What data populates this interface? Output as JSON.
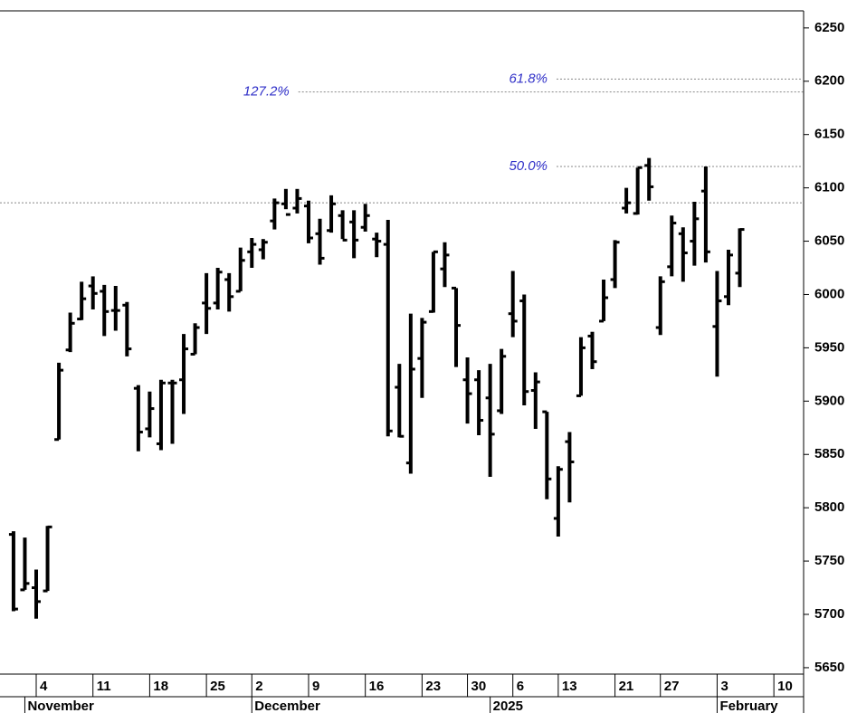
{
  "chart_data": {
    "type": "ohlc",
    "categories": [
      null,
      null,
      null,
      null,
      null,
      null,
      null,
      null,
      null,
      null,
      null,
      null,
      null,
      null,
      null,
      null,
      null,
      null,
      null,
      null,
      null,
      null,
      null,
      null,
      null,
      null,
      null,
      null,
      null,
      null,
      null,
      null,
      null,
      null,
      null,
      null,
      null,
      null,
      null,
      null,
      null,
      null,
      null,
      null,
      null,
      null,
      null,
      null,
      null,
      null,
      null,
      null,
      null,
      null,
      null,
      null,
      null,
      null,
      null,
      null,
      null,
      null,
      null,
      null,
      null
    ],
    "series": [
      {
        "color": "#000000",
        "values": [
          [
            5775,
            5778,
            5703,
            5705
          ],
          [
            5723,
            5772,
            5723,
            5729
          ],
          [
            5725,
            5742,
            5696,
            5712
          ],
          [
            5722,
            5783,
            5722,
            5782
          ],
          [
            5864,
            5936,
            5864,
            5929
          ],
          [
            5948,
            5983,
            5946,
            5973
          ],
          [
            5977,
            6012,
            5976,
            5996
          ],
          [
            6008,
            6017,
            5986,
            6001
          ],
          [
            6003,
            6009,
            5961,
            5984
          ],
          [
            5985,
            6008,
            5966,
            5985
          ],
          [
            5990,
            5993,
            5942,
            5949
          ],
          [
            5912,
            5915,
            5853,
            5871
          ],
          [
            5874,
            5909,
            5866,
            5893
          ],
          [
            5860,
            5920,
            5854,
            5917
          ],
          [
            5917,
            5920,
            5860,
            5917
          ],
          [
            5920,
            5963,
            5888,
            5949
          ],
          [
            5944,
            5973,
            5944,
            5969
          ],
          [
            5992,
            6020,
            5963,
            5987
          ],
          [
            5992,
            6025,
            5986,
            6021
          ],
          [
            6014,
            6020,
            5984,
            5998
          ],
          [
            6003,
            6044,
            6003,
            6032
          ],
          [
            6040,
            6053,
            6025,
            6047
          ],
          [
            6042,
            6052,
            6033,
            6049
          ],
          [
            6069,
            6090,
            6061,
            6086
          ],
          [
            6085,
            6099,
            6080,
            6075
          ],
          [
            6081,
            6099,
            6076,
            6090
          ],
          [
            6083,
            6088,
            6048,
            6053
          ],
          [
            6057,
            6071,
            6028,
            6034
          ],
          [
            6060,
            6093,
            6058,
            6085
          ],
          [
            6074,
            6079,
            6052,
            6051
          ],
          [
            6068,
            6079,
            6034,
            6051
          ],
          [
            6063,
            6085,
            6059,
            6074
          ],
          [
            6052,
            6058,
            6035,
            6050
          ],
          [
            6047,
            6070,
            5867,
            5872
          ],
          [
            5913,
            5935,
            5866,
            5867
          ],
          [
            5842,
            5982,
            5832,
            5930
          ],
          [
            5940,
            5978,
            5903,
            5974
          ],
          [
            5984,
            6040,
            5983,
            6040
          ],
          [
            6024,
            6049,
            6007,
            6037
          ],
          [
            6006,
            6006,
            5932,
            5971
          ],
          [
            5920,
            5941,
            5879,
            5907
          ],
          [
            5920,
            5929,
            5868,
            5882
          ],
          [
            5903,
            5935,
            5829,
            5869
          ],
          [
            5891,
            5949,
            5888,
            5942
          ],
          [
            5982,
            6022,
            5960,
            5975
          ],
          [
            5994,
            6000,
            5896,
            5909
          ],
          [
            5910,
            5927,
            5874,
            5918
          ],
          [
            5890,
            5890,
            5808,
            5827
          ],
          [
            5790,
            5839,
            5773,
            5836
          ],
          [
            5862,
            5871,
            5805,
            5843
          ],
          [
            5905,
            5960,
            5905,
            5950
          ],
          [
            5961,
            5965,
            5930,
            5937
          ],
          [
            5975,
            6014,
            5975,
            5997
          ],
          [
            6014,
            6051,
            6006,
            6049
          ],
          [
            6081,
            6100,
            6076,
            6086
          ],
          [
            6076,
            6119,
            6075,
            6119
          ],
          [
            6121,
            6128,
            6088,
            6101
          ],
          [
            5969,
            6017,
            5962,
            6012
          ],
          [
            6026,
            6074,
            6017,
            6067
          ],
          [
            6057,
            6063,
            6012,
            6039
          ],
          [
            6050,
            6087,
            6027,
            6071
          ],
          [
            6097,
            6120,
            6030,
            6040
          ],
          [
            5970,
            6022,
            5923,
            5994
          ],
          [
            5998,
            6042,
            5990,
            6037
          ],
          [
            6020,
            6062,
            6007,
            6061
          ]
        ]
      }
    ],
    "xlim": [
      -1.19,
      69.62
    ],
    "xticks": [
      {
        "value": 2,
        "label": "4"
      },
      {
        "value": 7,
        "label": "11"
      },
      {
        "value": 12,
        "label": "18"
      },
      {
        "value": 17,
        "label": "25"
      },
      {
        "value": 21,
        "label": "2"
      },
      {
        "value": 26,
        "label": "9"
      },
      {
        "value": 31,
        "label": "16"
      },
      {
        "value": 36,
        "label": "23"
      },
      {
        "value": 40,
        "label": "30"
      },
      {
        "value": 44,
        "label": "6"
      },
      {
        "value": 48,
        "label": "13"
      },
      {
        "value": 53,
        "label": "21"
      },
      {
        "value": 57,
        "label": "27"
      },
      {
        "value": 62,
        "label": "3"
      },
      {
        "value": 67,
        "label": "10"
      }
    ],
    "months": [
      {
        "value": 1,
        "label": "November"
      },
      {
        "value": 21,
        "label": "December"
      },
      {
        "value": 42,
        "label": "2025"
      },
      {
        "value": 62,
        "label": "February"
      }
    ],
    "ylim": [
      5644,
      6266
    ],
    "yticks": [
      5650,
      5700,
      5750,
      5800,
      5850,
      5900,
      5950,
      6000,
      6050,
      6100,
      6150,
      6200,
      6250
    ],
    "levels": [
      {
        "value": 6202,
        "label": "61.8%",
        "start": 47.85
      },
      {
        "value": 6190,
        "label": "127.2%",
        "start": 25.1
      },
      {
        "value": 6120,
        "label": "50.0%",
        "start": 47.85
      },
      {
        "value": 6086
      }
    ]
  }
}
